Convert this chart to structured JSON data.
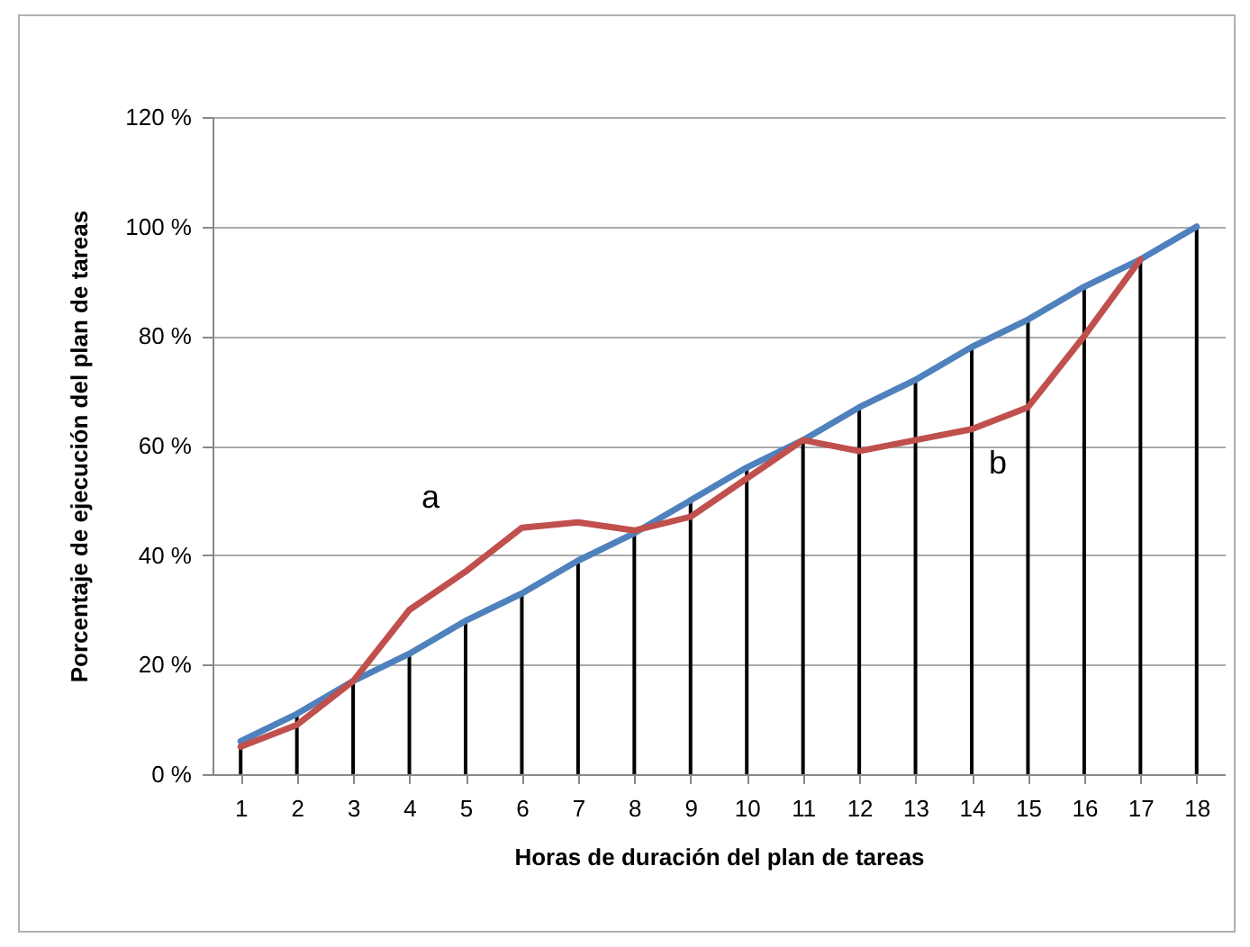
{
  "chart_data": {
    "type": "line",
    "xlabel": "Horas de duración del plan de tareas",
    "ylabel": "Porcentaje de ejecución del plan de tareas",
    "x": [
      1,
      2,
      3,
      4,
      5,
      6,
      7,
      8,
      9,
      10,
      11,
      12,
      13,
      14,
      15,
      16,
      17,
      18
    ],
    "xlim": [
      0.5,
      18.5
    ],
    "xticks": [
      1,
      2,
      3,
      4,
      5,
      6,
      7,
      8,
      9,
      10,
      11,
      12,
      13,
      14,
      15,
      16,
      17,
      18
    ],
    "ylim": [
      0,
      120
    ],
    "yticks": [
      {
        "value": 0,
        "label": "0 %"
      },
      {
        "value": 20,
        "label": "20 %"
      },
      {
        "value": 40,
        "label": "40 %"
      },
      {
        "value": 60,
        "label": "60 %"
      },
      {
        "value": 80,
        "label": "80 %"
      },
      {
        "value": 100,
        "label": "100 %"
      },
      {
        "value": 120,
        "label": "120 %"
      }
    ],
    "grid": "y",
    "series": [
      {
        "type": "bar",
        "color": "#000000",
        "values": [
          6,
          11,
          17,
          22,
          28,
          33,
          39,
          44,
          50,
          56,
          61,
          67,
          72,
          78,
          83,
          89,
          94,
          100
        ]
      },
      {
        "color": "#4f81bd",
        "values": [
          6,
          11,
          17,
          22,
          28,
          33,
          39,
          44,
          50,
          56,
          61,
          67,
          72,
          78,
          83,
          89,
          94,
          100
        ]
      },
      {
        "color": "#c0504d",
        "values": [
          5,
          9,
          17,
          30,
          37,
          45,
          46,
          44.5,
          47,
          54,
          61,
          59,
          61,
          63,
          67,
          80,
          94,
          null
        ]
      }
    ],
    "annotations": [
      "a",
      "b"
    ]
  }
}
